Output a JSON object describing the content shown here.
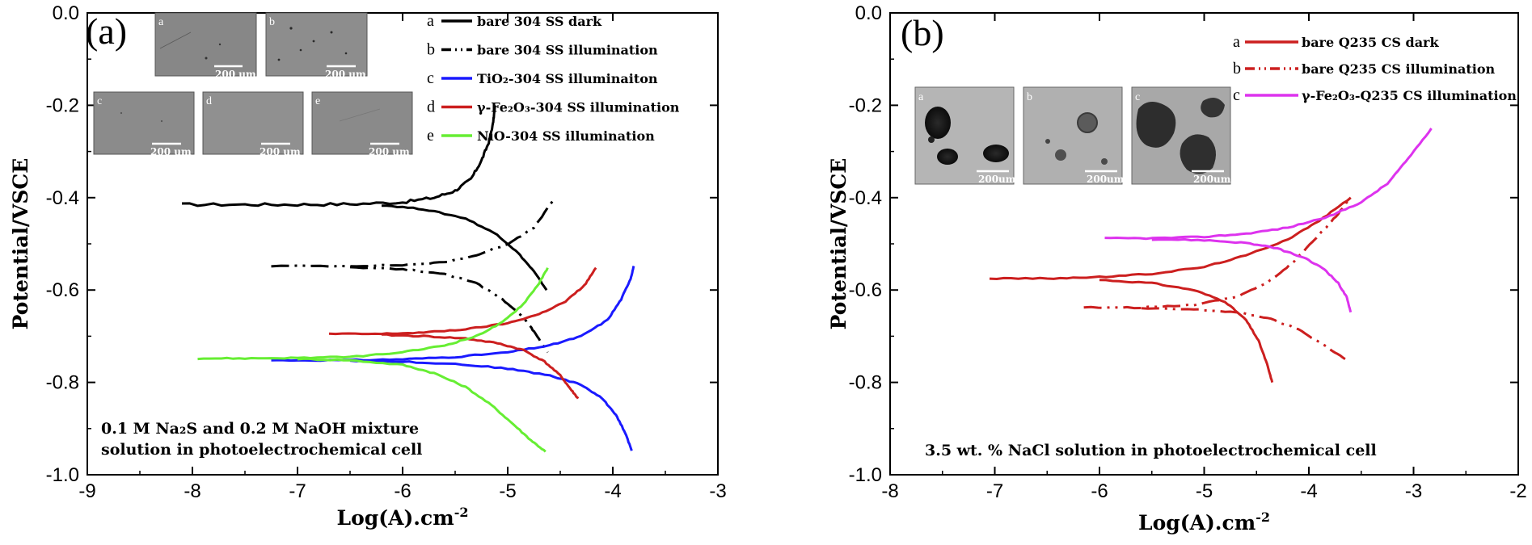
{
  "chart_data": [
    {
      "panel": "(a)",
      "type": "line",
      "xlabel": "Log(A).cm",
      "xlabel_sup": "-2",
      "ylabel": "Potential/VSCE",
      "xlim": [
        -9,
        -3
      ],
      "ylim": [
        -1.0,
        0.0
      ],
      "xticks": [
        -9,
        -8,
        -7,
        -6,
        -5,
        -4,
        -3
      ],
      "xtick_labels": [
        "-9",
        "-8",
        "-7",
        "-6",
        "-5",
        "-4",
        "-3"
      ],
      "yticks": [
        0.0,
        -0.2,
        -0.4,
        -0.6,
        -0.8,
        -1.0
      ],
      "ytick_labels": [
        "0.0",
        "-0.2",
        "-0.4",
        "-0.6",
        "-0.8",
        "-1.0"
      ],
      "annotation": [
        "0.1 M Na₂S and 0.2 M NaOH mixture",
        "solution in photoelectrochemical cell"
      ],
      "legend_position": "top-right",
      "series": [
        {
          "key": "a",
          "name": "bare 304 SS dark",
          "color": "#000000",
          "dash": "solid",
          "anodic": [
            [
              -8.1,
              -0.415
            ],
            [
              -7.5,
              -0.415
            ],
            [
              -7.0,
              -0.415
            ],
            [
              -6.5,
              -0.414
            ],
            [
              -6.0,
              -0.41
            ],
            [
              -5.7,
              -0.4
            ],
            [
              -5.5,
              -0.385
            ],
            [
              -5.35,
              -0.36
            ],
            [
              -5.25,
              -0.32
            ],
            [
              -5.18,
              -0.28
            ],
            [
              -5.14,
              -0.24
            ],
            [
              -5.12,
              -0.2
            ]
          ],
          "cathodic": [
            [
              -6.2,
              -0.416
            ],
            [
              -5.8,
              -0.425
            ],
            [
              -5.4,
              -0.445
            ],
            [
              -5.1,
              -0.48
            ],
            [
              -4.9,
              -0.52
            ],
            [
              -4.75,
              -0.56
            ],
            [
              -4.63,
              -0.6
            ]
          ]
        },
        {
          "key": "b",
          "name": "bare 304 SS illumination",
          "color": "#000000",
          "dash": "dashdot",
          "anodic": [
            [
              -7.25,
              -0.548
            ],
            [
              -6.5,
              -0.548
            ],
            [
              -6.0,
              -0.546
            ],
            [
              -5.6,
              -0.54
            ],
            [
              -5.3,
              -0.525
            ],
            [
              -5.0,
              -0.5
            ],
            [
              -4.75,
              -0.465
            ],
            [
              -4.55,
              -0.4
            ]
          ],
          "cathodic": [
            [
              -6.5,
              -0.55
            ],
            [
              -6.0,
              -0.555
            ],
            [
              -5.6,
              -0.565
            ],
            [
              -5.3,
              -0.585
            ],
            [
              -5.05,
              -0.62
            ],
            [
              -4.85,
              -0.66
            ],
            [
              -4.75,
              -0.69
            ],
            [
              -4.62,
              -0.735
            ]
          ]
        },
        {
          "key": "c",
          "name": "TiO₂-304 SS illuminaiton",
          "color": "#1a1aff",
          "dash": "solid",
          "anodic": [
            [
              -7.25,
              -0.752
            ],
            [
              -6.5,
              -0.752
            ],
            [
              -6.0,
              -0.75
            ],
            [
              -5.5,
              -0.745
            ],
            [
              -5.0,
              -0.735
            ],
            [
              -4.6,
              -0.72
            ],
            [
              -4.3,
              -0.7
            ],
            [
              -4.05,
              -0.665
            ],
            [
              -3.92,
              -0.62
            ],
            [
              -3.83,
              -0.575
            ],
            [
              -3.8,
              -0.548
            ]
          ],
          "cathodic": [
            [
              -6.5,
              -0.753
            ],
            [
              -6.0,
              -0.755
            ],
            [
              -5.5,
              -0.76
            ],
            [
              -5.0,
              -0.77
            ],
            [
              -4.6,
              -0.785
            ],
            [
              -4.3,
              -0.805
            ],
            [
              -4.1,
              -0.835
            ],
            [
              -3.97,
              -0.87
            ],
            [
              -3.88,
              -0.91
            ],
            [
              -3.82,
              -0.948
            ]
          ]
        },
        {
          "key": "d",
          "name": "γ-Fe₂O₃-304 SS illumination",
          "color": "#cc1f1f",
          "dash": "solid",
          "anodic": [
            [
              -6.7,
              -0.695
            ],
            [
              -6.2,
              -0.695
            ],
            [
              -5.8,
              -0.692
            ],
            [
              -5.4,
              -0.685
            ],
            [
              -5.0,
              -0.672
            ],
            [
              -4.7,
              -0.652
            ],
            [
              -4.45,
              -0.625
            ],
            [
              -4.27,
              -0.59
            ],
            [
              -4.16,
              -0.552
            ]
          ],
          "cathodic": [
            [
              -6.2,
              -0.697
            ],
            [
              -5.8,
              -0.7
            ],
            [
              -5.4,
              -0.705
            ],
            [
              -5.1,
              -0.715
            ],
            [
              -4.85,
              -0.73
            ],
            [
              -4.65,
              -0.755
            ],
            [
              -4.5,
              -0.785
            ],
            [
              -4.4,
              -0.815
            ],
            [
              -4.33,
              -0.835
            ]
          ]
        },
        {
          "key": "e",
          "name": "NiO-304 SS illumination",
          "color": "#66ee33",
          "dash": "solid",
          "anodic": [
            [
              -7.95,
              -0.748
            ],
            [
              -7.5,
              -0.748
            ],
            [
              -7.0,
              -0.747
            ],
            [
              -6.5,
              -0.745
            ],
            [
              -6.0,
              -0.735
            ],
            [
              -5.6,
              -0.72
            ],
            [
              -5.3,
              -0.7
            ],
            [
              -5.05,
              -0.67
            ],
            [
              -4.85,
              -0.63
            ],
            [
              -4.7,
              -0.585
            ],
            [
              -4.62,
              -0.552
            ]
          ],
          "cathodic": [
            [
              -7.0,
              -0.749
            ],
            [
              -6.5,
              -0.752
            ],
            [
              -6.0,
              -0.762
            ],
            [
              -5.7,
              -0.78
            ],
            [
              -5.4,
              -0.81
            ],
            [
              -5.15,
              -0.85
            ],
            [
              -4.95,
              -0.89
            ],
            [
              -4.78,
              -0.925
            ],
            [
              -4.64,
              -0.95
            ]
          ]
        }
      ]
    },
    {
      "panel": "(b)",
      "type": "line",
      "xlabel": "Log(A).cm",
      "xlabel_sup": "-2",
      "ylabel": "Potential/VSCE",
      "xlim": [
        -8,
        -2
      ],
      "ylim": [
        -1.0,
        0.0
      ],
      "xticks": [
        -8,
        -7,
        -6,
        -5,
        -4,
        -3,
        -2
      ],
      "xtick_labels": [
        "-8",
        "-7",
        "-6",
        "-5",
        "-4",
        "-3",
        "-2"
      ],
      "yticks": [
        0.0,
        -0.2,
        -0.4,
        -0.6,
        -0.8,
        -1.0
      ],
      "ytick_labels": [
        "0.0",
        "-0.2",
        "-0.4",
        "-0.6",
        "-0.8",
        "-1.0"
      ],
      "annotation": [
        "3.5 wt. % NaCl solution in photoelectrochemical cell"
      ],
      "legend_position": "top-right",
      "series": [
        {
          "key": "a",
          "name": "bare Q235 CS dark",
          "color": "#cc1f1f",
          "dash": "solid",
          "anodic": [
            [
              -7.05,
              -0.575
            ],
            [
              -6.5,
              -0.575
            ],
            [
              -6.0,
              -0.572
            ],
            [
              -5.5,
              -0.565
            ],
            [
              -5.0,
              -0.55
            ],
            [
              -4.6,
              -0.525
            ],
            [
              -4.2,
              -0.49
            ],
            [
              -3.9,
              -0.45
            ],
            [
              -3.6,
              -0.4
            ]
          ],
          "cathodic": [
            [
              -6.0,
              -0.578
            ],
            [
              -5.5,
              -0.585
            ],
            [
              -5.1,
              -0.6
            ],
            [
              -4.8,
              -0.625
            ],
            [
              -4.6,
              -0.665
            ],
            [
              -4.48,
              -0.71
            ],
            [
              -4.4,
              -0.76
            ],
            [
              -4.35,
              -0.8
            ]
          ]
        },
        {
          "key": "b",
          "name": "bare Q235 CS illumination",
          "color": "#cc1f1f",
          "dash": "dashdot",
          "anodic": [
            [
              -6.15,
              -0.638
            ],
            [
              -5.6,
              -0.638
            ],
            [
              -5.1,
              -0.632
            ],
            [
              -4.7,
              -0.615
            ],
            [
              -4.4,
              -0.585
            ],
            [
              -4.15,
              -0.54
            ],
            [
              -3.9,
              -0.48
            ],
            [
              -3.72,
              -0.435
            ],
            [
              -3.62,
              -0.405
            ]
          ],
          "cathodic": [
            [
              -5.6,
              -0.64
            ],
            [
              -5.1,
              -0.642
            ],
            [
              -4.7,
              -0.648
            ],
            [
              -4.4,
              -0.66
            ],
            [
              -4.1,
              -0.685
            ],
            [
              -3.85,
              -0.72
            ],
            [
              -3.65,
              -0.75
            ]
          ]
        },
        {
          "key": "c",
          "name": "γ-Fe₂O₃-Q235 CS illumination",
          "color": "#dd33ee",
          "dash": "solid",
          "anodic": [
            [
              -5.95,
              -0.488
            ],
            [
              -5.5,
              -0.488
            ],
            [
              -5.0,
              -0.485
            ],
            [
              -4.6,
              -0.478
            ],
            [
              -4.2,
              -0.465
            ],
            [
              -3.8,
              -0.44
            ],
            [
              -3.5,
              -0.41
            ],
            [
              -3.25,
              -0.37
            ],
            [
              -3.05,
              -0.315
            ],
            [
              -2.83,
              -0.25
            ]
          ],
          "cathodic": [
            [
              -5.5,
              -0.49
            ],
            [
              -5.0,
              -0.492
            ],
            [
              -4.6,
              -0.498
            ],
            [
              -4.3,
              -0.51
            ],
            [
              -4.05,
              -0.53
            ],
            [
              -3.85,
              -0.555
            ],
            [
              -3.72,
              -0.585
            ],
            [
              -3.64,
              -0.615
            ],
            [
              -3.6,
              -0.648
            ]
          ]
        }
      ]
    }
  ],
  "insets": {
    "a": [
      {
        "letter": "a",
        "scale": "200 um"
      },
      {
        "letter": "b",
        "scale": "200 um"
      },
      {
        "letter": "c",
        "scale": "200 um"
      },
      {
        "letter": "d",
        "scale": "200 um"
      },
      {
        "letter": "e",
        "scale": "200 um"
      }
    ],
    "b": [
      {
        "letter": "a",
        "scale": "200um"
      },
      {
        "letter": "b",
        "scale": "200um"
      },
      {
        "letter": "c",
        "scale": "200um"
      }
    ]
  }
}
